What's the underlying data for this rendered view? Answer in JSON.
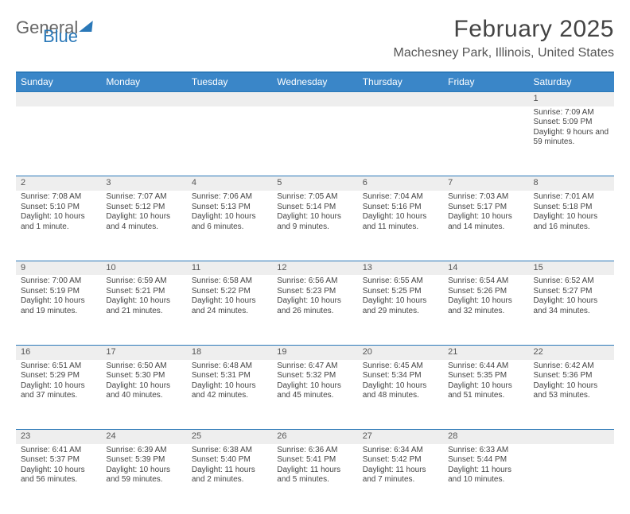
{
  "logo": {
    "general": "General",
    "blue": "Blue"
  },
  "title": "February 2025",
  "location": "Machesney Park, Illinois, United States",
  "colors": {
    "accent": "#3a86c8",
    "border": "#2a78b8",
    "daynum_bg": "#eeeeee",
    "text": "#444444",
    "background": "#ffffff"
  },
  "typography": {
    "title_fontsize": 30,
    "location_fontsize": 16,
    "header_fontsize": 12,
    "cell_fontsize": 10,
    "font_family": "Arial"
  },
  "day_headers": [
    "Sunday",
    "Monday",
    "Tuesday",
    "Wednesday",
    "Thursday",
    "Friday",
    "Saturday"
  ],
  "weeks": [
    [
      null,
      null,
      null,
      null,
      null,
      null,
      {
        "n": "1",
        "sr": "Sunrise: 7:09 AM",
        "ss": "Sunset: 5:09 PM",
        "dl": "Daylight: 9 hours and 59 minutes."
      }
    ],
    [
      {
        "n": "2",
        "sr": "Sunrise: 7:08 AM",
        "ss": "Sunset: 5:10 PM",
        "dl": "Daylight: 10 hours and 1 minute."
      },
      {
        "n": "3",
        "sr": "Sunrise: 7:07 AM",
        "ss": "Sunset: 5:12 PM",
        "dl": "Daylight: 10 hours and 4 minutes."
      },
      {
        "n": "4",
        "sr": "Sunrise: 7:06 AM",
        "ss": "Sunset: 5:13 PM",
        "dl": "Daylight: 10 hours and 6 minutes."
      },
      {
        "n": "5",
        "sr": "Sunrise: 7:05 AM",
        "ss": "Sunset: 5:14 PM",
        "dl": "Daylight: 10 hours and 9 minutes."
      },
      {
        "n": "6",
        "sr": "Sunrise: 7:04 AM",
        "ss": "Sunset: 5:16 PM",
        "dl": "Daylight: 10 hours and 11 minutes."
      },
      {
        "n": "7",
        "sr": "Sunrise: 7:03 AM",
        "ss": "Sunset: 5:17 PM",
        "dl": "Daylight: 10 hours and 14 minutes."
      },
      {
        "n": "8",
        "sr": "Sunrise: 7:01 AM",
        "ss": "Sunset: 5:18 PM",
        "dl": "Daylight: 10 hours and 16 minutes."
      }
    ],
    [
      {
        "n": "9",
        "sr": "Sunrise: 7:00 AM",
        "ss": "Sunset: 5:19 PM",
        "dl": "Daylight: 10 hours and 19 minutes."
      },
      {
        "n": "10",
        "sr": "Sunrise: 6:59 AM",
        "ss": "Sunset: 5:21 PM",
        "dl": "Daylight: 10 hours and 21 minutes."
      },
      {
        "n": "11",
        "sr": "Sunrise: 6:58 AM",
        "ss": "Sunset: 5:22 PM",
        "dl": "Daylight: 10 hours and 24 minutes."
      },
      {
        "n": "12",
        "sr": "Sunrise: 6:56 AM",
        "ss": "Sunset: 5:23 PM",
        "dl": "Daylight: 10 hours and 26 minutes."
      },
      {
        "n": "13",
        "sr": "Sunrise: 6:55 AM",
        "ss": "Sunset: 5:25 PM",
        "dl": "Daylight: 10 hours and 29 minutes."
      },
      {
        "n": "14",
        "sr": "Sunrise: 6:54 AM",
        "ss": "Sunset: 5:26 PM",
        "dl": "Daylight: 10 hours and 32 minutes."
      },
      {
        "n": "15",
        "sr": "Sunrise: 6:52 AM",
        "ss": "Sunset: 5:27 PM",
        "dl": "Daylight: 10 hours and 34 minutes."
      }
    ],
    [
      {
        "n": "16",
        "sr": "Sunrise: 6:51 AM",
        "ss": "Sunset: 5:29 PM",
        "dl": "Daylight: 10 hours and 37 minutes."
      },
      {
        "n": "17",
        "sr": "Sunrise: 6:50 AM",
        "ss": "Sunset: 5:30 PM",
        "dl": "Daylight: 10 hours and 40 minutes."
      },
      {
        "n": "18",
        "sr": "Sunrise: 6:48 AM",
        "ss": "Sunset: 5:31 PM",
        "dl": "Daylight: 10 hours and 42 minutes."
      },
      {
        "n": "19",
        "sr": "Sunrise: 6:47 AM",
        "ss": "Sunset: 5:32 PM",
        "dl": "Daylight: 10 hours and 45 minutes."
      },
      {
        "n": "20",
        "sr": "Sunrise: 6:45 AM",
        "ss": "Sunset: 5:34 PM",
        "dl": "Daylight: 10 hours and 48 minutes."
      },
      {
        "n": "21",
        "sr": "Sunrise: 6:44 AM",
        "ss": "Sunset: 5:35 PM",
        "dl": "Daylight: 10 hours and 51 minutes."
      },
      {
        "n": "22",
        "sr": "Sunrise: 6:42 AM",
        "ss": "Sunset: 5:36 PM",
        "dl": "Daylight: 10 hours and 53 minutes."
      }
    ],
    [
      {
        "n": "23",
        "sr": "Sunrise: 6:41 AM",
        "ss": "Sunset: 5:37 PM",
        "dl": "Daylight: 10 hours and 56 minutes."
      },
      {
        "n": "24",
        "sr": "Sunrise: 6:39 AM",
        "ss": "Sunset: 5:39 PM",
        "dl": "Daylight: 10 hours and 59 minutes."
      },
      {
        "n": "25",
        "sr": "Sunrise: 6:38 AM",
        "ss": "Sunset: 5:40 PM",
        "dl": "Daylight: 11 hours and 2 minutes."
      },
      {
        "n": "26",
        "sr": "Sunrise: 6:36 AM",
        "ss": "Sunset: 5:41 PM",
        "dl": "Daylight: 11 hours and 5 minutes."
      },
      {
        "n": "27",
        "sr": "Sunrise: 6:34 AM",
        "ss": "Sunset: 5:42 PM",
        "dl": "Daylight: 11 hours and 7 minutes."
      },
      {
        "n": "28",
        "sr": "Sunrise: 6:33 AM",
        "ss": "Sunset: 5:44 PM",
        "dl": "Daylight: 11 hours and 10 minutes."
      },
      null
    ]
  ]
}
